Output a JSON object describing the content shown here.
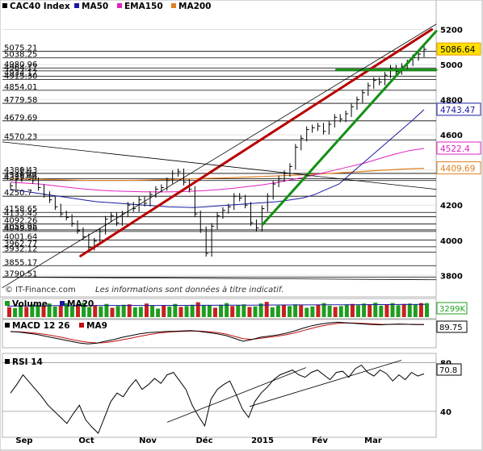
{
  "chart_data": [
    {
      "type": "line",
      "title": "CAC40 Index",
      "legend": [
        {
          "name": "CAC40 Index",
          "color": "#000000"
        },
        {
          "name": "MA50",
          "color": "#1a1aa0"
        },
        {
          "name": "EMA150",
          "color": "#e020c0"
        },
        {
          "name": "MA200",
          "color": "#e08020"
        }
      ],
      "ylim": [
        3760,
        5230
      ],
      "y_ticks": [
        3800,
        4000,
        4200,
        4400,
        4600,
        4800,
        5000,
        5200
      ],
      "x_ticks": [
        "Sep",
        "Oct",
        "Nov",
        "Déc",
        "2015",
        "Fév",
        "Mar"
      ],
      "level_labels": [
        "5075.21",
        "5038.25",
        "4980.96",
        "4964.17",
        "4934.17",
        "4915.30",
        "4854.01",
        "4779.58",
        "4679.69",
        "4570.23",
        "4380.43",
        "4349.74",
        "4339.94",
        "4250.7",
        "4158.65",
        "4133.45",
        "4092.26",
        "4058.95",
        "4049.96",
        "4001.64",
        "3962.77",
        "3932.12",
        "3855.17",
        "3790.51"
      ],
      "levels": [
        5075.21,
        5038.25,
        4980.96,
        4964.17,
        4934.17,
        4915.3,
        4854.01,
        4779.58,
        4679.69,
        4570.23,
        4380.43,
        4349.74,
        4339.94,
        4250.7,
        4158.65,
        4133.45,
        4092.26,
        4058.95,
        4049.96,
        4001.64,
        3962.77,
        3932.12,
        3855.17,
        3790.51
      ],
      "last_values": [
        {
          "label": "5086.64",
          "value": 5086.64,
          "color": "#e6a000",
          "fill": "#ffe000"
        },
        {
          "label": "4743.47",
          "value": 4743.47,
          "color": "#1a1aa0",
          "fill": "#ffffff"
        },
        {
          "label": "4522.4",
          "value": 4522.4,
          "color": "#e020c0",
          "fill": "#ffffff"
        },
        {
          "label": "4409.69",
          "value": 4409.69,
          "color": "#e08020",
          "fill": "#ffffff"
        }
      ],
      "close": [
        4310,
        4350,
        4400,
        4370,
        4340,
        4300,
        4260,
        4230,
        4190,
        4150,
        4130,
        4095,
        4055,
        4020,
        3960,
        3995,
        4050,
        4120,
        4140,
        4100,
        4150,
        4200,
        4180,
        4230,
        4210,
        4260,
        4290,
        4300,
        4340,
        4380,
        4390,
        4330,
        4290,
        4150,
        4060,
        3925,
        4080,
        4140,
        4170,
        4190,
        4250,
        4240,
        4200,
        4100,
        4070,
        4180,
        4250,
        4320,
        4350,
        4380,
        4420,
        4530,
        4580,
        4630,
        4640,
        4650,
        4620,
        4660,
        4700,
        4690,
        4720,
        4760,
        4800,
        4840,
        4880,
        4910,
        4900,
        4940,
        4980,
        4960,
        4990,
        5010,
        5040,
        5060,
        5086.64
      ],
      "ma50": [
        4290,
        4280,
        4270,
        4260,
        4250,
        4240,
        4230,
        4220,
        4215,
        4210,
        4205,
        4200,
        4195,
        4190,
        4188,
        4186,
        4190,
        4195,
        4200,
        4205,
        4210,
        4215,
        4220,
        4230,
        4240,
        4260,
        4290,
        4320,
        4380,
        4440,
        4500,
        4560,
        4620,
        4680,
        4743.47
      ],
      "ema150": [
        4330,
        4325,
        4320,
        4310,
        4300,
        4292,
        4285,
        4280,
        4278,
        4276,
        4275,
        4276,
        4278,
        4282,
        4288,
        4295,
        4305,
        4315,
        4328,
        4345,
        4360,
        4380,
        4400,
        4420,
        4440,
        4465,
        4490,
        4510,
        4522.4
      ],
      "ma200": [
        4350,
        4348,
        4345,
        4342,
        4340,
        4340,
        4342,
        4345,
        4348,
        4352,
        4356,
        4360,
        4365,
        4370,
        4376,
        4383,
        4390,
        4398,
        4405,
        4409.69
      ],
      "trendlines": [
        {
          "name": "red-support",
          "color": "#b80000",
          "from": [
            0.18,
            3910
          ],
          "to": [
            0.99,
            5200
          ]
        },
        {
          "name": "green-channel",
          "color": "#129012",
          "from": [
            0.6,
            4090
          ],
          "to": [
            1.0,
            5190
          ]
        },
        {
          "name": "green-horizontal",
          "color": "#129012",
          "from": [
            0.77,
            4970
          ],
          "to": [
            1.0,
            4970
          ]
        },
        {
          "name": "black-up",
          "color": "#000000",
          "from": [
            0.0,
            3730
          ],
          "to": [
            1.0,
            5230
          ]
        },
        {
          "name": "black-down",
          "color": "#000000",
          "from": [
            0.0,
            4560
          ],
          "to": [
            1.0,
            4290
          ]
        },
        {
          "name": "black-flat",
          "color": "#000000",
          "from": [
            0.0,
            3790
          ],
          "to": [
            1.0,
            3775
          ]
        }
      ],
      "footer": {
        "brand": "© IT-Finance.com",
        "note": "Les informations sont données à titre indicatif."
      }
    },
    {
      "type": "bar",
      "title": "Volume",
      "legend": [
        {
          "name": "Volume",
          "color": "#1e9e1e"
        },
        {
          "name": "MA20",
          "color": "#1a1aa0"
        }
      ],
      "last_value": "3299K",
      "values": [
        2.3,
        2.1,
        2.8,
        2.4,
        3.0,
        2.9,
        2.6,
        3.2,
        2.5,
        2.7,
        3.3,
        2.6,
        2.9,
        3.4,
        2.4,
        2.8,
        2.5,
        3.1,
        2.2,
        2.6,
        2.9,
        3.0,
        2.3,
        2.4,
        3.2,
        2.7,
        2.0,
        2.8,
        2.5,
        3.1,
        2.4,
        2.6,
        2.9,
        3.5,
        2.7,
        2.8,
        2.2,
        2.9,
        3.3,
        2.6,
        2.8,
        3.0,
        2.4,
        2.5,
        3.2,
        3.6,
        2.3,
        2.7,
        2.9,
        2.6,
        3.0,
        2.8,
        2.2,
        2.5,
        2.9,
        3.3,
        2.7,
        2.4,
        2.6,
        3.0,
        3.1,
        2.8,
        3.2,
        2.9,
        3.4,
        2.7,
        3.0,
        3.3,
        2.8,
        3.1,
        3.2,
        3.0,
        3.3,
        3.299
      ],
      "ma20": [
        2.6,
        2.65,
        2.7,
        2.72,
        2.74,
        2.75,
        2.75,
        2.76,
        2.78,
        2.8,
        2.82,
        2.85,
        2.88,
        2.9,
        2.92,
        2.95,
        2.97,
        3.0
      ]
    },
    {
      "type": "line",
      "title": "MACD 12 26",
      "legend": [
        {
          "name": "MACD 12 26",
          "color": "#000000"
        },
        {
          "name": "MA9",
          "color": "#c01010"
        }
      ],
      "last_value": "89.75",
      "macd": [
        30,
        25,
        15,
        5,
        -10,
        -25,
        -40,
        -55,
        -70,
        -78,
        -72,
        -55,
        -40,
        -20,
        -5,
        10,
        20,
        25,
        30,
        32,
        35,
        38,
        30,
        20,
        10,
        -5,
        -30,
        -55,
        -40,
        -20,
        -10,
        0,
        15,
        35,
        60,
        80,
        95,
        105,
        110,
        105,
        100,
        95,
        90,
        88,
        92,
        95,
        93,
        90,
        89.75
      ],
      "ma9": [
        28,
        27,
        22,
        15,
        5,
        -8,
        -22,
        -38,
        -52,
        -64,
        -70,
        -66,
        -56,
        -42,
        -28,
        -12,
        2,
        14,
        22,
        28,
        31,
        34,
        33,
        28,
        20,
        8,
        -12,
        -32,
        -38,
        -30,
        -20,
        -10,
        2,
        18,
        38,
        58,
        76,
        90,
        100,
        104,
        103,
        100,
        96,
        92,
        91,
        92,
        92,
        91,
        90
      ]
    },
    {
      "type": "line",
      "title": "RSI 14",
      "legend": [
        {
          "name": "RSI 14",
          "color": "#000000"
        }
      ],
      "last_value": "70.8",
      "ylim": [
        20,
        85
      ],
      "y_ticks": [
        40,
        80
      ],
      "values": [
        55,
        62,
        70,
        64,
        58,
        52,
        45,
        40,
        35,
        30,
        38,
        45,
        33,
        27,
        22,
        35,
        48,
        55,
        52,
        60,
        66,
        58,
        62,
        67,
        63,
        70,
        72,
        65,
        58,
        45,
        36,
        28,
        50,
        58,
        62,
        65,
        54,
        42,
        35,
        48,
        55,
        60,
        66,
        70,
        72,
        74,
        70,
        68,
        72,
        74,
        70,
        66,
        72,
        73,
        68,
        75,
        78,
        72,
        69,
        74,
        71,
        65,
        70,
        66,
        72,
        69,
        70.8
      ],
      "trendlines": [
        {
          "name": "rsi-support",
          "color": "#000000",
          "from": [
            0.38,
            31
          ],
          "to": [
            0.7,
            76
          ]
        },
        {
          "name": "rsi-support-2",
          "color": "#000000",
          "from": [
            0.57,
            44
          ],
          "to": [
            0.92,
            82
          ]
        }
      ]
    }
  ]
}
